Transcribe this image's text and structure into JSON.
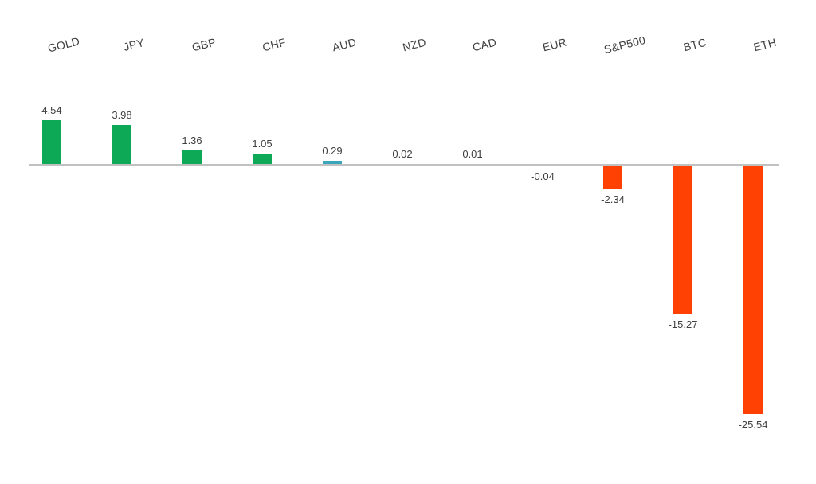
{
  "chart_data": {
    "type": "bar",
    "orientation": "vertical",
    "title": "",
    "xlabel": "",
    "ylabel": "",
    "grid": false,
    "legend": false,
    "baseline": 0,
    "categories": [
      "GOLD",
      "JPY",
      "GBP",
      "CHF",
      "AUD",
      "NZD",
      "CAD",
      "EUR",
      "S&P500",
      "BTC",
      "ETH"
    ],
    "values": [
      4.54,
      3.98,
      1.36,
      1.05,
      0.29,
      0.02,
      0.01,
      -0.04,
      -2.34,
      -15.27,
      -25.54
    ],
    "value_labels": [
      "4.54",
      "3.98",
      "1.36",
      "1.05",
      "0.29",
      "0.02",
      "0.01",
      "-0.04",
      "-2.34",
      "-15.27",
      "-25.54"
    ],
    "bar_colors": [
      "#0da957",
      "#0da957",
      "#0da957",
      "#0da957",
      "#3ba6b9",
      "#0da957",
      "#0da957",
      "#ff4103",
      "#ff4103",
      "#ff4103",
      "#ff4103"
    ],
    "colors": {
      "positive": "#0da957",
      "negative": "#ff4103",
      "aud_special": "#3ba6b9",
      "axis_line": "#c1c1c1",
      "label_text": "#3f3f3f",
      "background": "#ffffff"
    },
    "ylim": [
      -26,
      5
    ]
  }
}
